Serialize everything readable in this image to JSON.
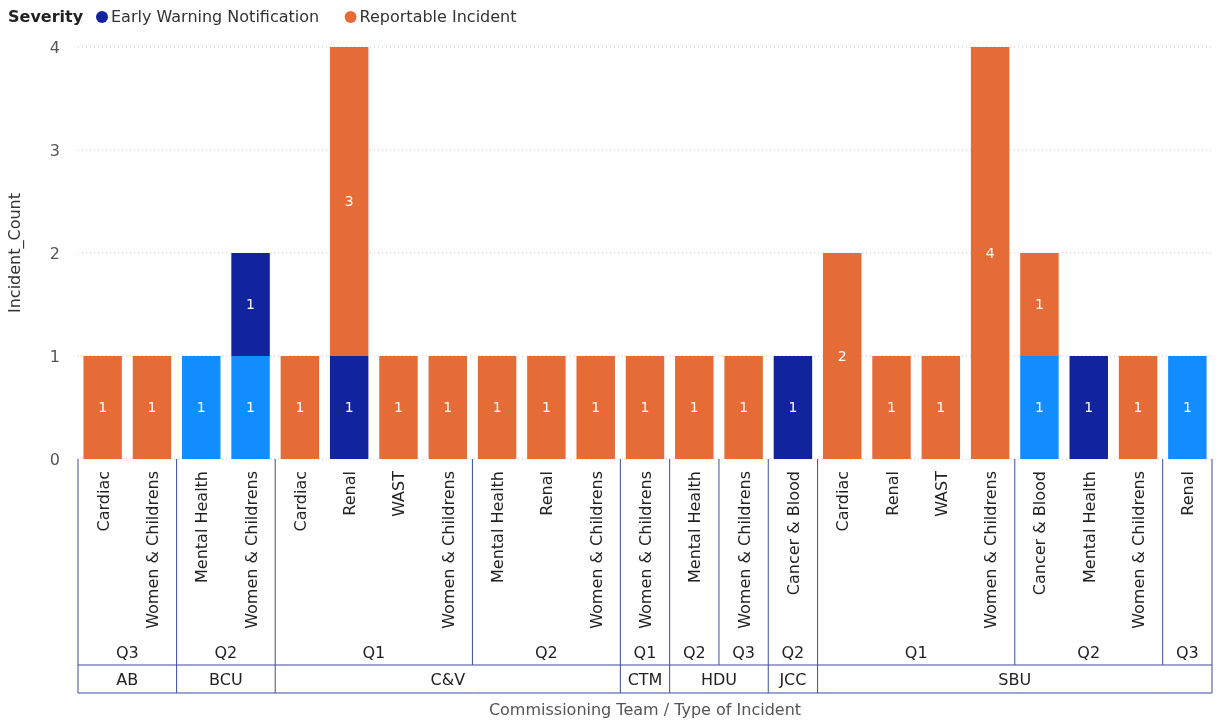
{
  "chart_data": [
    {
      "type": "bar",
      "stacked": true,
      "legend_title": "Severity",
      "legend": "top",
      "ylabel": "Incident_Count",
      "title": "AB",
      "xlabel": "Q3",
      "categories": [
        "Cardiac",
        "Women & Childrens"
      ],
      "series": [
        {
          "color": "#118dff",
          "values": [
            null,
            null
          ]
        },
        {
          "name": "Early Warning Notification",
          "color": "#12239e",
          "values": [
            null,
            null
          ]
        },
        {
          "name": "Reportable Incident",
          "color": "#e66c37",
          "values": [
            1,
            1
          ]
        }
      ],
      "ylim": [
        0,
        4
      ],
      "yticks": [
        0,
        1,
        2,
        3,
        4
      ],
      "grid": "y",
      "data_labels": true,
      "annotations": [
        "Commissioning Team / Type of Incident"
      ]
    },
    {
      "type": "bar",
      "stacked": true,
      "title": "BCU",
      "xlabel": "Q2",
      "categories": [
        "Mental Health",
        "Women & Childrens"
      ],
      "series": [
        {
          "color": "#118dff",
          "values": [
            1,
            1
          ]
        },
        {
          "color": "#12239e",
          "values": [
            null,
            1
          ]
        },
        {
          "color": "#e66c37",
          "values": [
            null,
            null
          ]
        }
      ],
      "ylim": [
        0,
        4
      ],
      "tick_labels": "x",
      "data_labels": true
    },
    {
      "type": "bar",
      "stacked": true,
      "title": "C&V",
      "xlabel": "Q1",
      "categories": [
        "Cardiac",
        "Renal",
        "WAST",
        "Women & Childrens"
      ],
      "series": [
        {
          "color": "#118dff",
          "values": [
            null,
            null,
            null,
            null
          ]
        },
        {
          "color": "#12239e",
          "values": [
            null,
            1,
            null,
            null
          ]
        },
        {
          "color": "#e66c37",
          "values": [
            1,
            3,
            1,
            1
          ]
        }
      ],
      "ylim": [
        0,
        4
      ],
      "tick_labels": "x",
      "data_labels": true
    },
    {
      "type": "bar",
      "stacked": true,
      "xlabel": "Q2",
      "categories": [
        "Mental Health",
        "Renal",
        "Women & Childrens"
      ],
      "series": [
        {
          "color": "#118dff",
          "values": [
            null,
            null,
            null
          ]
        },
        {
          "color": "#12239e",
          "values": [
            null,
            null,
            null
          ]
        },
        {
          "color": "#e66c37",
          "values": [
            1,
            1,
            1
          ]
        }
      ],
      "ylim": [
        0,
        4
      ],
      "tick_labels": "x",
      "data_labels": true
    },
    {
      "type": "bar",
      "stacked": true,
      "title": "CTM",
      "xlabel": "Q1",
      "categories": [
        "Women & Childrens"
      ],
      "series": [
        {
          "color": "#118dff",
          "values": [
            null
          ]
        },
        {
          "color": "#12239e",
          "values": [
            null
          ]
        },
        {
          "color": "#e66c37",
          "values": [
            1
          ]
        }
      ],
      "ylim": [
        0,
        4
      ],
      "tick_labels": "x",
      "data_labels": true
    },
    {
      "type": "bar",
      "stacked": true,
      "title": "HDU",
      "xlabel": "Q2",
      "categories": [
        "Mental Health"
      ],
      "series": [
        {
          "color": "#118dff",
          "values": [
            null
          ]
        },
        {
          "color": "#12239e",
          "values": [
            null
          ]
        },
        {
          "color": "#e66c37",
          "values": [
            1
          ]
        }
      ],
      "ylim": [
        0,
        4
      ],
      "tick_labels": "x",
      "data_labels": true
    },
    {
      "type": "bar",
      "stacked": true,
      "xlabel": "Q3",
      "categories": [
        "Women & Childrens"
      ],
      "series": [
        {
          "color": "#118dff",
          "values": [
            null
          ]
        },
        {
          "color": "#12239e",
          "values": [
            null
          ]
        },
        {
          "color": "#e66c37",
          "values": [
            1
          ]
        }
      ],
      "ylim": [
        0,
        4
      ],
      "tick_labels": "x",
      "data_labels": true
    },
    {
      "type": "bar",
      "stacked": true,
      "title": "JCC",
      "xlabel": "Q2",
      "categories": [
        "Cancer & Blood"
      ],
      "series": [
        {
          "color": "#118dff",
          "values": [
            null
          ]
        },
        {
          "color": "#12239e",
          "values": [
            1
          ]
        },
        {
          "color": "#e66c37",
          "values": [
            null
          ]
        }
      ],
      "ylim": [
        0,
        4
      ],
      "tick_labels": "x",
      "data_labels": true
    },
    {
      "type": "bar",
      "stacked": true,
      "title": "SBU",
      "xlabel": "Q1",
      "categories": [
        "Cardiac",
        "Renal",
        "WAST",
        "Women & Childrens"
      ],
      "series": [
        {
          "color": "#118dff",
          "values": [
            null,
            null,
            null,
            null
          ]
        },
        {
          "color": "#12239e",
          "values": [
            null,
            null,
            null,
            null
          ]
        },
        {
          "color": "#e66c37",
          "values": [
            2,
            1,
            1,
            4
          ]
        }
      ],
      "ylim": [
        0,
        4
      ],
      "tick_labels": "x",
      "data_labels": true
    },
    {
      "type": "bar",
      "stacked": true,
      "xlabel": "Q2",
      "categories": [
        "Cancer & Blood",
        "Mental Health",
        "Women & Childrens"
      ],
      "series": [
        {
          "color": "#118dff",
          "values": [
            1,
            null,
            null
          ]
        },
        {
          "color": "#12239e",
          "values": [
            null,
            1,
            null
          ]
        },
        {
          "color": "#e66c37",
          "values": [
            1,
            null,
            1
          ]
        }
      ],
      "ylim": [
        0,
        4
      ],
      "tick_labels": "x",
      "data_labels": true
    },
    {
      "type": "bar",
      "stacked": true,
      "xlabel": "Q3",
      "categories": [
        "Renal"
      ],
      "series": [
        {
          "color": "#118dff",
          "values": [
            1
          ]
        },
        {
          "color": "#12239e",
          "values": [
            null
          ]
        },
        {
          "color": "#e66c37",
          "values": [
            null
          ]
        }
      ],
      "ylim": [
        0,
        4
      ],
      "tick_labels": "x",
      "data_labels": true
    }
  ]
}
